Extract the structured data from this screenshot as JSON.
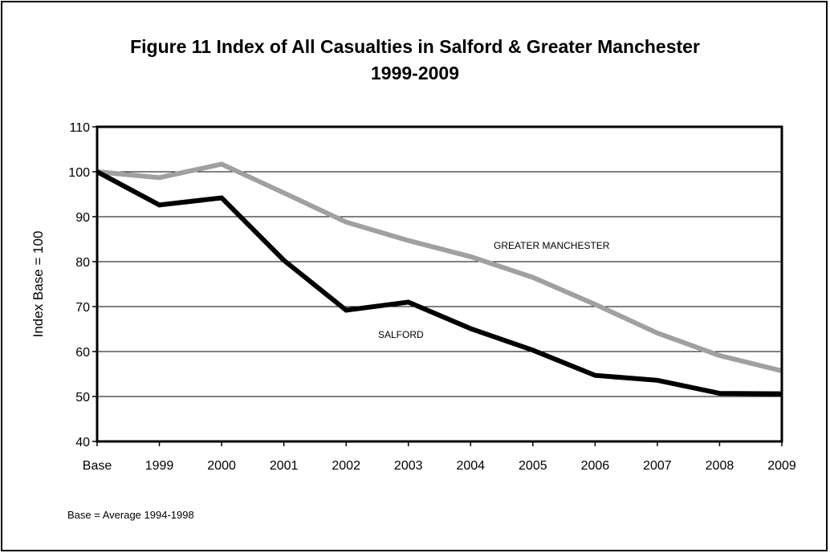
{
  "chart_data": {
    "type": "line",
    "title": "Figure 11 Index of All Casualties in Salford & Greater Manchester",
    "subtitle": "1999-2009",
    "xlabel": "",
    "ylabel": "Index Base = 100",
    "categories": [
      "Base",
      "1999",
      "2000",
      "2001",
      "2002",
      "2003",
      "2004",
      "2005",
      "2006",
      "2007",
      "2008",
      "2009"
    ],
    "ylim": [
      40,
      110
    ],
    "yticks": [
      40,
      50,
      60,
      70,
      80,
      90,
      100,
      110
    ],
    "grid": true,
    "legend": "none",
    "series": [
      {
        "name": "GREATER MANCHESTER",
        "color": "#a0a0a0",
        "values": [
          100,
          98.7,
          101.7,
          95.3,
          88.8,
          84.7,
          81.1,
          76.5,
          70.5,
          64.1,
          59.1,
          55.7
        ]
      },
      {
        "name": "SALFORD",
        "color": "#000000",
        "values": [
          100,
          92.6,
          94.2,
          80.3,
          69.2,
          71.0,
          65.1,
          60.3,
          54.7,
          53.6,
          50.7,
          50.6
        ]
      }
    ],
    "annotations": [
      "GREATER MANCHESTER",
      "SALFORD"
    ],
    "footnote": "Base = Average 1994-1998"
  }
}
